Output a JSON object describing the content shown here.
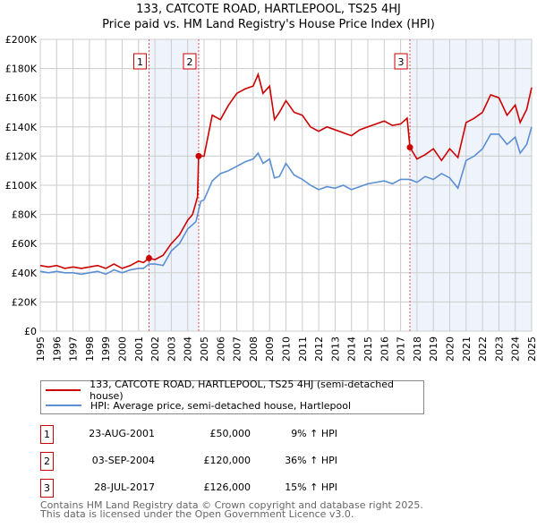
{
  "title": "133, CATCOTE ROAD, HARTLEPOOL, TS25 4HJ",
  "subtitle": "Price paid vs. HM Land Registry's House Price Index (HPI)",
  "colors": {
    "property": "#cc0000",
    "hpi": "#5b8fd4",
    "shade": "#eef3fc"
  },
  "chart_data": {
    "type": "line",
    "title": "133, CATCOTE ROAD, HARTLEPOOL, TS25 4HJ - Price paid vs. HM Land Registry's House Price Index (HPI)",
    "xlim": [
      1995,
      2025
    ],
    "ylim": [
      0,
      200000
    ],
    "y_ticks": [
      0,
      20000,
      40000,
      60000,
      80000,
      100000,
      120000,
      140000,
      160000,
      180000,
      200000
    ],
    "y_tick_labels": [
      "£0",
      "£20K",
      "£40K",
      "£60K",
      "£80K",
      "£100K",
      "£120K",
      "£140K",
      "£160K",
      "£180K",
      "£200K"
    ],
    "x_ticks": [
      "1995",
      "1996",
      "1997",
      "1998",
      "1999",
      "2000",
      "2001",
      "2002",
      "2003",
      "2004",
      "2005",
      "2006",
      "2007",
      "2008",
      "2009",
      "2010",
      "2011",
      "2012",
      "2013",
      "2014",
      "2015",
      "2016",
      "2017",
      "2018",
      "2019",
      "2020",
      "2021",
      "2022",
      "2023",
      "2024",
      "2025"
    ],
    "grid": true,
    "series": [
      {
        "name": "133, CATCOTE ROAD, HARTLEPOOL, TS25 4HJ (semi-detached house)",
        "color": "#cc0000",
        "x": [
          1995,
          1995.5,
          1996,
          1996.5,
          1997,
          1997.5,
          1998,
          1998.5,
          1999,
          1999.5,
          2000,
          2000.5,
          2001,
          2001.3,
          2001.64,
          2002,
          2002.5,
          2003,
          2003.5,
          2004,
          2004.3,
          2004.6,
          2004.67,
          2005,
          2005.5,
          2006,
          2006.5,
          2007,
          2007.5,
          2008,
          2008.3,
          2008.6,
          2009,
          2009.3,
          2009.6,
          2010,
          2010.5,
          2011,
          2011.5,
          2012,
          2012.5,
          2013,
          2013.5,
          2014,
          2014.5,
          2015,
          2015.5,
          2016,
          2016.5,
          2017,
          2017.4,
          2017.57,
          2018,
          2018.5,
          2019,
          2019.5,
          2020,
          2020.5,
          2021,
          2021.5,
          2022,
          2022.5,
          2023,
          2023.5,
          2024,
          2024.3,
          2024.7,
          2025
        ],
        "y": [
          45000,
          44000,
          45000,
          43000,
          44000,
          43000,
          44000,
          45000,
          43000,
          46000,
          43000,
          45000,
          48000,
          47000,
          50000,
          49000,
          52000,
          60000,
          66000,
          76000,
          80000,
          92000,
          120000,
          120000,
          148000,
          145000,
          155000,
          163000,
          166000,
          168000,
          176000,
          163000,
          168000,
          145000,
          150000,
          158000,
          150000,
          148000,
          140000,
          137000,
          140000,
          138000,
          136000,
          134000,
          138000,
          140000,
          142000,
          144000,
          141000,
          142000,
          146000,
          126000,
          118000,
          121000,
          125000,
          117000,
          125000,
          119000,
          143000,
          146000,
          150000,
          162000,
          160000,
          148000,
          155000,
          143000,
          152000,
          167000
        ]
      },
      {
        "name": "HPI: Average price, semi-detached house, Hartlepool",
        "color": "#5b8fd4",
        "x": [
          1995,
          1995.5,
          1996,
          1996.5,
          1997,
          1997.5,
          1998,
          1998.5,
          1999,
          1999.5,
          2000,
          2000.5,
          2001,
          2001.3,
          2001.64,
          2002,
          2002.5,
          2003,
          2003.5,
          2004,
          2004.5,
          2004.8,
          2005,
          2005.5,
          2006,
          2006.5,
          2007,
          2007.5,
          2008,
          2008.3,
          2008.6,
          2009,
          2009.3,
          2009.6,
          2010,
          2010.5,
          2011,
          2011.5,
          2012,
          2012.5,
          2013,
          2013.5,
          2014,
          2014.5,
          2015,
          2015.5,
          2016,
          2016.5,
          2017,
          2017.57,
          2018,
          2018.5,
          2019,
          2019.5,
          2020,
          2020.5,
          2021,
          2021.5,
          2022,
          2022.5,
          2023,
          2023.5,
          2024,
          2024.3,
          2024.7,
          2025
        ],
        "y": [
          41000,
          40000,
          41000,
          40000,
          40000,
          39000,
          40000,
          41000,
          39000,
          42000,
          40000,
          42000,
          43000,
          43000,
          46000,
          46000,
          45000,
          55000,
          60000,
          70000,
          75000,
          89000,
          90000,
          103000,
          108000,
          110000,
          113000,
          116000,
          118000,
          122000,
          115000,
          118000,
          105000,
          106000,
          115000,
          107000,
          104000,
          100000,
          97000,
          99000,
          98000,
          100000,
          97000,
          99000,
          101000,
          102000,
          103000,
          101000,
          104000,
          104000,
          102000,
          106000,
          104000,
          108000,
          105000,
          98000,
          117000,
          120000,
          125000,
          135000,
          135000,
          128000,
          133000,
          122000,
          128000,
          140000
        ]
      }
    ],
    "sales": [
      {
        "label": "1",
        "x": 2001.64,
        "y": 50000,
        "date": "23-AUG-2001",
        "price": "£50,000",
        "hpi": "9% ↑ HPI"
      },
      {
        "label": "2",
        "x": 2004.67,
        "y": 120000,
        "date": "03-SEP-2004",
        "price": "£120,000",
        "hpi": "36% ↑ HPI"
      },
      {
        "label": "3",
        "x": 2017.57,
        "y": 126000,
        "date": "28-JUL-2017",
        "price": "£126,000",
        "hpi": "15% ↑ HPI"
      }
    ],
    "shaded_ranges": [
      [
        2001.64,
        2004.67
      ],
      [
        2017.57,
        2025
      ]
    ]
  },
  "legend": {
    "property": "133, CATCOTE ROAD, HARTLEPOOL, TS25 4HJ (semi-detached house)",
    "hpi": "HPI: Average price, semi-detached house, Hartlepool"
  },
  "footer": [
    "Contains HM Land Registry data © Crown copyright and database right 2025.",
    "This data is licensed under the Open Government Licence v3.0."
  ]
}
